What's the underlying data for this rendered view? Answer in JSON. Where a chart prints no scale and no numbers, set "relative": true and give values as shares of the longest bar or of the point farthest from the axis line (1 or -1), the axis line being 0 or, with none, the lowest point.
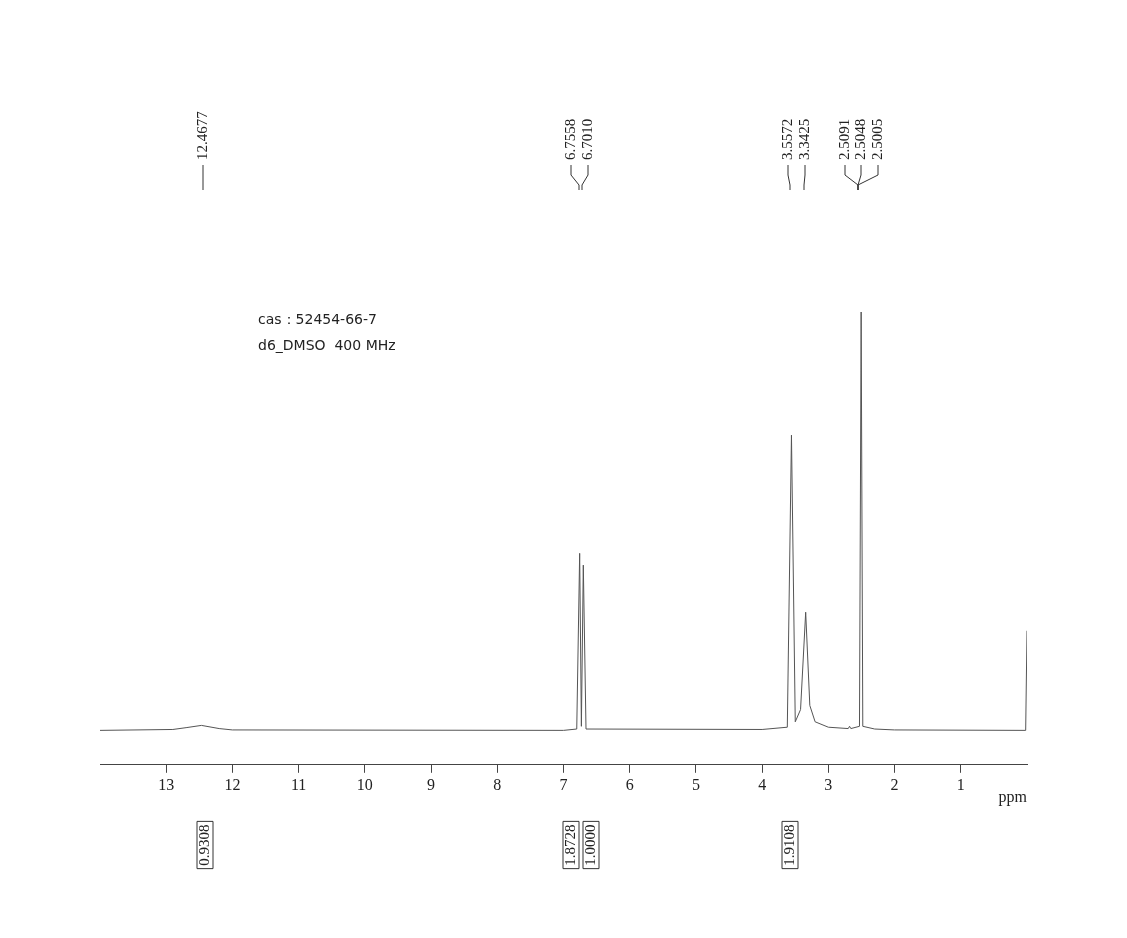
{
  "chart_data": {
    "type": "line",
    "relative": true,
    "xlabel": "ppm",
    "xlim": [
      14,
      0
    ],
    "xticks": [
      13,
      12,
      11,
      10,
      9,
      8,
      7,
      6,
      5,
      4,
      3,
      2,
      1
    ],
    "x": [
      14.0,
      12.9,
      12.7,
      12.4677,
      12.2,
      12.0,
      7.0,
      6.8,
      6.7558,
      6.73,
      6.701,
      6.66,
      4.0,
      3.62,
      3.5572,
      3.5,
      3.42,
      3.3425,
      3.28,
      3.2,
      3.0,
      2.7,
      2.68,
      2.66,
      2.53,
      2.5048,
      2.48,
      2.3,
      2.0,
      0.02,
      0.0
    ],
    "values": [
      0.076,
      0.078,
      0.082,
      0.087,
      0.08,
      0.077,
      0.076,
      0.079,
      0.467,
      0.085,
      0.441,
      0.079,
      0.078,
      0.083,
      0.728,
      0.095,
      0.122,
      0.337,
      0.131,
      0.095,
      0.083,
      0.08,
      0.085,
      0.08,
      0.085,
      1,
      0.085,
      0.079,
      0.077,
      0.076,
      0.296
    ],
    "color": "#555555",
    "grid": false,
    "legend": false,
    "marker": "none",
    "annotations": [
      "12.4677",
      "6.7558",
      "6.7010",
      "3.5572",
      "3.3425",
      "2.5091",
      "2.5048",
      "2.5005",
      "0.9308",
      "1.8728",
      "1.0000",
      "1.9108",
      "cas：52454-66-7",
      "d6_DMSO  400 MHz"
    ]
  }
}
